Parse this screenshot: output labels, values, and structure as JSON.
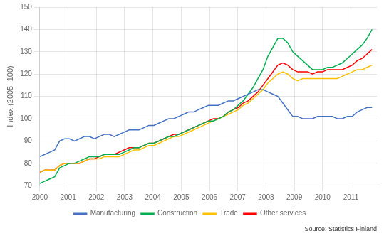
{
  "chart_data": {
    "type": "line",
    "ylabel": "Index (2005=100)",
    "annotation": "Source: Statistics Finland",
    "x": [
      2000,
      2000.1754,
      2000.3507,
      2000.5261,
      2000.7015,
      2000.8769,
      2001.0522,
      2001.2276,
      2001.403,
      2001.5784,
      2001.7537,
      2001.9291,
      2002.1045,
      2002.2799,
      2002.4552,
      2002.6306,
      2002.806,
      2002.9813,
      2003.1567,
      2003.3321,
      2003.5075,
      2003.6828,
      2003.8582,
      2004.0336,
      2004.209,
      2004.3843,
      2004.5597,
      2004.7351,
      2004.9104,
      2005.0858,
      2005.2612,
      2005.4366,
      2005.6119,
      2005.7873,
      2005.9627,
      2006.1381,
      2006.3134,
      2006.4888,
      2006.6642,
      2006.8396,
      2007.0149,
      2007.1903,
      2007.3657,
      2007.541,
      2007.7164,
      2007.8918,
      2008.0672,
      2008.2425,
      2008.4179,
      2008.5933,
      2008.7687,
      2008.944,
      2009.1194,
      2009.2948,
      2009.4701,
      2009.6455,
      2009.8209,
      2009.9963,
      2010.1716,
      2010.347,
      2010.5224,
      2010.6978,
      2010.8731,
      2011.0485,
      2011.2239,
      2011.3993,
      2011.5746,
      2011.75
    ],
    "series": [
      {
        "name": "Manufacturing",
        "color": "#4472C4",
        "values": [
          83,
          84,
          85,
          86,
          90,
          91,
          91,
          90,
          91,
          92,
          92,
          91,
          92,
          93,
          93,
          92,
          93,
          94,
          95,
          95,
          95,
          96,
          97,
          97,
          98,
          99,
          100,
          100,
          101,
          102,
          103,
          103,
          104,
          105,
          106,
          106,
          106,
          107,
          108,
          108,
          109,
          110,
          111,
          112,
          113,
          113,
          112,
          111,
          110,
          107,
          104,
          101,
          101,
          100,
          100,
          100,
          101,
          101,
          101,
          101,
          100,
          100,
          101,
          101,
          103,
          104,
          105,
          105
        ]
      },
      {
        "name": "Construction",
        "color": "#00B050",
        "values": [
          71,
          72,
          73,
          74,
          78,
          79,
          80,
          80,
          81,
          82,
          83,
          83,
          83,
          84,
          84,
          84,
          84,
          85,
          86,
          87,
          87,
          88,
          89,
          89,
          90,
          91,
          92,
          92,
          93,
          94,
          95,
          96,
          97,
          98,
          99,
          99,
          100,
          101,
          103,
          104,
          106,
          108,
          111,
          114,
          118,
          122,
          128,
          132,
          136,
          136,
          134,
          130,
          128,
          126,
          124,
          122,
          122,
          122,
          123,
          123,
          124,
          125,
          127,
          129,
          131,
          133,
          136,
          140
        ]
      },
      {
        "name": "Trade",
        "color": "#FFC000",
        "values": [
          76,
          77,
          77,
          77,
          79,
          80,
          80,
          80,
          80,
          81,
          82,
          82,
          82,
          83,
          83,
          83,
          83,
          84,
          85,
          86,
          86,
          87,
          88,
          88,
          89,
          90,
          91,
          92,
          92,
          93,
          94,
          95,
          96,
          97,
          98,
          99,
          100,
          101,
          102,
          103,
          104,
          106,
          107,
          109,
          111,
          113,
          116,
          118,
          120,
          121,
          120,
          118,
          117,
          118,
          118,
          118,
          118,
          118,
          118,
          118,
          118,
          119,
          120,
          121,
          122,
          122,
          123,
          124
        ]
      },
      {
        "name": "Other services",
        "color": "#FF0000",
        "values": [
          76,
          77,
          77,
          77,
          79,
          80,
          80,
          80,
          80,
          81,
          82,
          82,
          83,
          84,
          84,
          84,
          85,
          86,
          87,
          87,
          87,
          88,
          89,
          89,
          90,
          91,
          92,
          93,
          93,
          94,
          95,
          96,
          97,
          98,
          99,
          100,
          100,
          101,
          103,
          104,
          105,
          107,
          108,
          110,
          112,
          115,
          118,
          121,
          124,
          125,
          124,
          122,
          121,
          121,
          121,
          120,
          121,
          121,
          122,
          122,
          122,
          122,
          123,
          124,
          126,
          127,
          129,
          131
        ]
      }
    ],
    "xlim": [
      2000.0,
      2011.92
    ],
    "xticks": [
      2000,
      2001,
      2002,
      2003,
      2004,
      2005,
      2006,
      2007,
      2008,
      2009,
      2010,
      2011
    ],
    "ylim": [
      70,
      150
    ],
    "yticks": [
      70,
      80,
      90,
      100,
      110,
      120,
      130,
      140,
      150
    ],
    "grid": true,
    "legend": "bottom"
  }
}
